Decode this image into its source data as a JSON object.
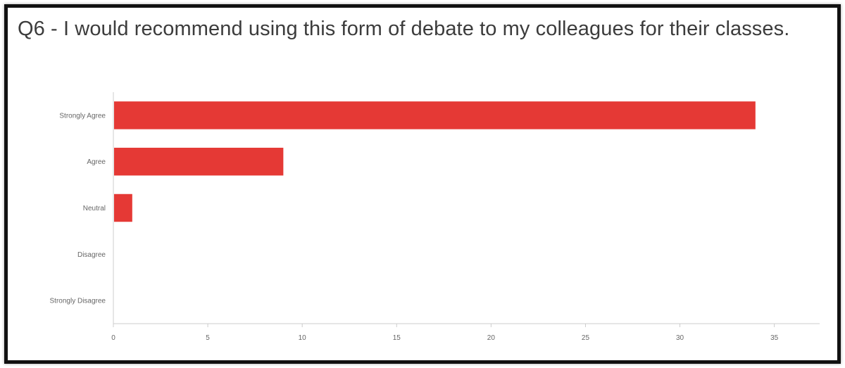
{
  "chart_data": {
    "type": "bar",
    "orientation": "horizontal",
    "title": "Q6 - I would recommend using this form of debate to my colleagues for their classes.",
    "categories": [
      "Strongly Agree",
      "Agree",
      "Neutral",
      "Disagree",
      "Strongly Disagree"
    ],
    "values": [
      34,
      9,
      1,
      0,
      0
    ],
    "xticks": [
      0,
      5,
      10,
      15,
      20,
      25,
      30,
      35
    ],
    "xlim": [
      0,
      37.4
    ],
    "grid": false,
    "bar_color": "#e53935"
  }
}
